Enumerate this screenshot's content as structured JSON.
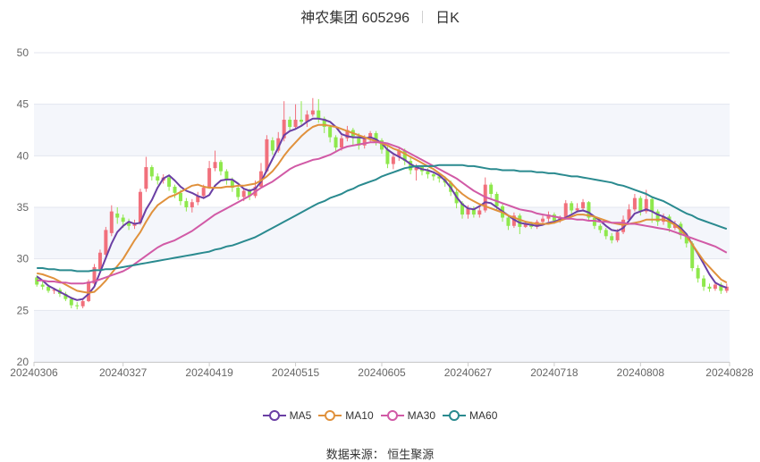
{
  "header": {
    "title": "神农集团 605296",
    "period": "日K"
  },
  "source_text": "数据来源： 恒生聚源",
  "colors": {
    "up": "#f1707c",
    "down": "#8ee84c",
    "grid": "#e3e6ef",
    "plot_band": "#f4f6fb",
    "axis_text": "#666666"
  },
  "chart_data": {
    "type": "candlestick",
    "title": "神农集团 605296",
    "ylim": [
      20,
      50
    ],
    "yticks": [
      20,
      25,
      30,
      35,
      40,
      45,
      50
    ],
    "xtick_labels": [
      "20240306",
      "20240327",
      "20240419",
      "20240515",
      "20240605",
      "20240627",
      "20240718",
      "20240808",
      "20240828"
    ],
    "xtick_index": [
      0,
      15,
      30,
      45,
      60,
      75,
      90,
      105,
      120
    ],
    "grid": true,
    "legend_position": "bottom",
    "candles": [
      [
        28.2,
        27.5,
        28.4,
        27.3
      ],
      [
        27.5,
        27.3,
        27.8,
        27.0
      ],
      [
        27.3,
        26.9,
        27.5,
        26.7
      ],
      [
        26.9,
        27.0,
        27.2,
        26.6
      ],
      [
        27.0,
        26.6,
        27.2,
        26.3
      ],
      [
        26.6,
        26.1,
        26.8,
        25.9
      ],
      [
        26.1,
        25.5,
        26.3,
        25.2
      ],
      [
        25.5,
        25.4,
        25.8,
        25.1
      ],
      [
        25.4,
        25.9,
        26.2,
        25.2
      ],
      [
        25.9,
        27.8,
        28.0,
        25.8
      ],
      [
        27.6,
        29.2,
        29.5,
        27.4
      ],
      [
        29.0,
        30.6,
        30.9,
        28.8
      ],
      [
        30.4,
        32.8,
        33.1,
        30.2
      ],
      [
        32.5,
        34.6,
        35.2,
        32.2
      ],
      [
        34.4,
        34.0,
        35.0,
        33.4
      ],
      [
        34.0,
        33.6,
        34.3,
        33.0
      ],
      [
        33.6,
        33.2,
        33.9,
        32.8
      ],
      [
        33.2,
        33.5,
        33.8,
        32.9
      ],
      [
        33.5,
        36.5,
        36.8,
        33.3
      ],
      [
        36.8,
        38.9,
        39.9,
        36.5
      ],
      [
        38.9,
        38.0,
        39.1,
        37.6
      ],
      [
        38.0,
        37.6,
        38.3,
        37.2
      ],
      [
        37.6,
        37.9,
        38.2,
        37.3
      ],
      [
        37.9,
        37.0,
        38.1,
        36.6
      ],
      [
        37.0,
        36.4,
        37.2,
        35.9
      ],
      [
        36.4,
        35.6,
        36.7,
        35.2
      ],
      [
        35.6,
        35.0,
        35.9,
        34.6
      ],
      [
        35.0,
        35.5,
        35.8,
        34.5
      ],
      [
        35.5,
        36.1,
        36.5,
        35.2
      ],
      [
        36.1,
        36.9,
        37.2,
        35.8
      ],
      [
        36.9,
        38.8,
        39.5,
        36.8
      ],
      [
        38.8,
        39.4,
        40.5,
        38.5
      ],
      [
        39.4,
        38.5,
        39.6,
        38.1
      ],
      [
        38.5,
        37.6,
        38.7,
        37.2
      ],
      [
        37.6,
        36.9,
        37.9,
        36.5
      ],
      [
        36.9,
        36.0,
        37.1,
        35.7
      ],
      [
        36.0,
        36.6,
        36.9,
        35.6
      ],
      [
        36.6,
        36.1,
        36.8,
        35.7
      ],
      [
        36.1,
        37.0,
        37.6,
        35.9
      ],
      [
        37.0,
        38.5,
        39.3,
        36.9
      ],
      [
        38.5,
        41.6,
        42.0,
        38.4
      ],
      [
        41.5,
        40.5,
        41.8,
        40.1
      ],
      [
        40.5,
        41.7,
        42.3,
        40.3
      ],
      [
        41.7,
        43.5,
        45.3,
        41.4
      ],
      [
        43.5,
        42.8,
        43.8,
        42.4
      ],
      [
        42.8,
        43.5,
        45.0,
        42.6
      ],
      [
        43.5,
        43.3,
        45.3,
        43.0
      ],
      [
        43.3,
        44.0,
        44.4,
        42.8
      ],
      [
        44.0,
        44.4,
        45.6,
        43.8
      ],
      [
        44.4,
        43.6,
        45.5,
        43.2
      ],
      [
        43.6,
        42.8,
        43.8,
        42.2
      ],
      [
        42.8,
        41.8,
        43.0,
        41.3
      ],
      [
        41.8,
        40.8,
        42.0,
        40.4
      ],
      [
        40.8,
        41.7,
        42.0,
        40.5
      ],
      [
        41.7,
        42.5,
        42.9,
        41.4
      ],
      [
        42.5,
        41.9,
        42.7,
        41.0
      ],
      [
        41.9,
        41.0,
        42.2,
        40.6
      ],
      [
        41.0,
        41.7,
        42.0,
        40.7
      ],
      [
        41.7,
        42.2,
        42.4,
        41.3
      ],
      [
        42.2,
        41.5,
        42.4,
        41.0
      ],
      [
        41.5,
        40.6,
        41.7,
        40.2
      ],
      [
        40.6,
        39.2,
        40.9,
        38.8
      ],
      [
        39.2,
        39.9,
        40.2,
        38.7
      ],
      [
        39.9,
        40.5,
        40.8,
        39.5
      ],
      [
        40.5,
        39.5,
        40.7,
        39.1
      ],
      [
        39.5,
        38.6,
        39.8,
        38.2
      ],
      [
        38.6,
        38.9,
        39.2,
        37.6
      ],
      [
        38.9,
        38.5,
        39.1,
        38.1
      ],
      [
        38.5,
        38.2,
        38.8,
        37.8
      ],
      [
        38.2,
        38.0,
        38.5,
        37.6
      ],
      [
        38.0,
        37.8,
        38.3,
        37.4
      ],
      [
        37.8,
        37.4,
        38.0,
        37.0
      ],
      [
        37.4,
        36.5,
        37.6,
        36.1
      ],
      [
        36.5,
        35.4,
        36.8,
        34.9
      ],
      [
        35.4,
        34.3,
        35.6,
        33.9
      ],
      [
        34.3,
        34.9,
        35.2,
        33.9
      ],
      [
        34.9,
        34.3,
        35.1,
        34.0
      ],
      [
        34.3,
        34.7,
        35.0,
        34.0
      ],
      [
        34.7,
        37.2,
        37.9,
        34.5
      ],
      [
        37.2,
        36.3,
        37.4,
        35.9
      ],
      [
        36.3,
        35.1,
        36.5,
        34.7
      ],
      [
        35.1,
        34.0,
        35.3,
        33.6
      ],
      [
        34.0,
        33.2,
        34.2,
        32.8
      ],
      [
        33.2,
        34.2,
        34.5,
        33.0
      ],
      [
        34.2,
        33.1,
        34.4,
        32.4
      ],
      [
        33.1,
        33.4,
        33.7,
        33.0
      ],
      [
        33.4,
        33.1,
        33.6,
        32.9
      ],
      [
        33.1,
        33.6,
        33.8,
        32.9
      ],
      [
        33.6,
        33.9,
        34.2,
        33.3
      ],
      [
        33.9,
        34.3,
        34.6,
        33.6
      ],
      [
        34.3,
        33.7,
        34.5,
        33.4
      ],
      [
        33.7,
        34.0,
        34.2,
        33.5
      ],
      [
        34.0,
        35.4,
        35.7,
        33.9
      ],
      [
        35.4,
        34.7,
        35.6,
        34.4
      ],
      [
        34.7,
        34.9,
        35.4,
        34.5
      ],
      [
        34.9,
        35.5,
        35.8,
        34.6
      ],
      [
        35.5,
        34.0,
        35.6,
        33.7
      ],
      [
        34.0,
        33.2,
        34.2,
        32.9
      ],
      [
        33.2,
        32.8,
        33.4,
        32.5
      ],
      [
        32.8,
        32.2,
        33.0,
        31.9
      ],
      [
        32.2,
        31.8,
        32.5,
        31.5
      ],
      [
        31.8,
        32.6,
        32.9,
        31.6
      ],
      [
        32.6,
        33.8,
        34.2,
        32.4
      ],
      [
        33.8,
        34.8,
        35.3,
        33.6
      ],
      [
        34.8,
        35.9,
        36.3,
        34.6
      ],
      [
        35.9,
        34.6,
        36.1,
        34.2
      ],
      [
        34.6,
        35.8,
        36.7,
        34.4
      ],
      [
        35.8,
        34.6,
        36.0,
        33.5
      ],
      [
        34.6,
        33.6,
        34.8,
        33.2
      ],
      [
        33.6,
        34.1,
        34.4,
        33.3
      ],
      [
        34.1,
        33.0,
        34.3,
        32.6
      ],
      [
        33.0,
        33.4,
        33.7,
        32.8
      ],
      [
        33.4,
        32.3,
        33.6,
        31.9
      ],
      [
        32.3,
        31.5,
        32.5,
        31.1
      ],
      [
        31.5,
        29.1,
        31.7,
        28.8
      ],
      [
        29.1,
        28.1,
        29.4,
        27.7
      ],
      [
        28.1,
        27.3,
        28.4,
        26.9
      ],
      [
        27.3,
        27.1,
        27.6,
        26.8
      ],
      [
        27.1,
        27.5,
        27.8,
        26.9
      ],
      [
        27.5,
        26.9,
        27.7,
        26.6
      ],
      [
        26.9,
        27.3,
        27.6,
        26.7
      ]
    ],
    "series": [
      {
        "name": "MA5",
        "color": "#6a3fa4",
        "values": [
          28.3,
          27.9,
          27.4,
          27.1,
          26.8,
          26.5,
          26.2,
          26.0,
          26.1,
          26.6,
          27.3,
          28.7,
          30.1,
          31.5,
          32.6,
          33.2,
          33.6,
          33.4,
          33.5,
          34.8,
          35.7,
          36.9,
          37.8,
          38.1,
          37.6,
          37.0,
          36.6,
          36.4,
          36.1,
          35.9,
          36.2,
          37.1,
          37.6,
          37.7,
          37.7,
          37.3,
          36.8,
          36.6,
          36.8,
          37.5,
          38.6,
          39.7,
          40.8,
          42.0,
          42.4,
          42.6,
          42.9,
          43.3,
          43.6,
          43.6,
          43.5,
          43.3,
          42.8,
          42.1,
          41.9,
          41.8,
          41.8,
          41.7,
          41.8,
          41.6,
          41.2,
          40.6,
          40.2,
          39.9,
          39.6,
          39.2,
          38.9,
          38.7,
          38.6,
          38.4,
          38.1,
          37.6,
          36.9,
          36.0,
          35.3,
          34.9,
          34.8,
          35.1,
          35.5,
          35.4,
          35.0,
          34.6,
          34.2,
          33.8,
          33.5,
          33.4,
          33.3,
          33.2,
          33.3,
          33.5,
          33.6,
          33.8,
          34.0,
          34.3,
          34.6,
          34.7,
          34.5,
          34.1,
          33.7,
          33.2,
          32.8,
          32.7,
          33.0,
          33.7,
          34.4,
          34.6,
          34.8,
          34.6,
          34.3,
          34.1,
          33.8,
          33.4,
          33.0,
          32.4,
          31.4,
          30.5,
          29.5,
          28.5,
          27.7,
          27.4,
          27.2
        ]
      },
      {
        "name": "MA10",
        "color": "#e0913c",
        "values": [
          28.6,
          28.5,
          28.3,
          28.1,
          27.8,
          27.5,
          27.2,
          26.9,
          26.8,
          26.7,
          26.8,
          27.3,
          27.9,
          28.6,
          29.3,
          30.0,
          30.9,
          31.8,
          32.6,
          33.6,
          34.5,
          35.2,
          35.6,
          36.0,
          36.2,
          36.5,
          36.8,
          37.1,
          37.2,
          37.0,
          36.9,
          36.9,
          36.9,
          37.0,
          37.0,
          37.1,
          37.1,
          37.2,
          37.3,
          37.6,
          38.0,
          38.5,
          39.2,
          40.0,
          40.7,
          41.3,
          41.9,
          42.4,
          42.8,
          43.0,
          43.0,
          42.9,
          42.8,
          42.6,
          42.4,
          42.2,
          42.0,
          41.8,
          41.6,
          41.4,
          41.2,
          41.0,
          40.7,
          40.5,
          40.2,
          39.9,
          39.6,
          39.3,
          39.0,
          38.7,
          38.3,
          37.9,
          37.4,
          36.8,
          36.3,
          35.9,
          35.6,
          35.3,
          35.1,
          34.9,
          34.7,
          34.5,
          34.2,
          34.0,
          33.8,
          33.6,
          33.5,
          33.4,
          33.4,
          33.4,
          33.5,
          33.7,
          33.9,
          34.1,
          34.3,
          34.3,
          34.2,
          34.1,
          33.9,
          33.7,
          33.5,
          33.4,
          33.3,
          33.4,
          33.5,
          33.6,
          33.8,
          33.8,
          33.8,
          33.8,
          33.6,
          33.3,
          32.8,
          32.2,
          31.4,
          30.6,
          29.8,
          29.2,
          28.6,
          28.0,
          27.7
        ]
      },
      {
        "name": "MA30",
        "color": "#d15aa6",
        "values": [
          27.9,
          27.9,
          27.8,
          27.8,
          27.7,
          27.7,
          27.6,
          27.6,
          27.6,
          27.7,
          27.8,
          28.0,
          28.2,
          28.4,
          28.6,
          28.8,
          29.1,
          29.5,
          29.9,
          30.3,
          30.7,
          31.1,
          31.4,
          31.6,
          31.8,
          32.1,
          32.4,
          32.7,
          33.1,
          33.5,
          33.9,
          34.3,
          34.6,
          34.9,
          35.2,
          35.5,
          35.8,
          36.1,
          36.5,
          36.9,
          37.2,
          37.5,
          37.9,
          38.3,
          38.7,
          39.0,
          39.2,
          39.4,
          39.6,
          39.7,
          39.9,
          40.1,
          40.4,
          40.7,
          40.9,
          41.0,
          41.1,
          41.2,
          41.3,
          41.3,
          41.3,
          41.2,
          41.0,
          40.8,
          40.5,
          40.2,
          39.9,
          39.6,
          39.3,
          39.0,
          38.7,
          38.4,
          38.1,
          37.8,
          37.4,
          37.0,
          36.6,
          36.3,
          36.0,
          35.8,
          35.6,
          35.4,
          35.2,
          35.0,
          34.8,
          34.7,
          34.6,
          34.4,
          34.3,
          34.2,
          34.1,
          34.0,
          33.9,
          33.9,
          33.8,
          33.8,
          33.7,
          33.7,
          33.6,
          33.6,
          33.5,
          33.5,
          33.5,
          33.4,
          33.4,
          33.3,
          33.2,
          33.1,
          33.0,
          32.9,
          32.8,
          32.6,
          32.4,
          32.2,
          32.0,
          31.8,
          31.6,
          31.4,
          31.2,
          30.9,
          30.6
        ]
      },
      {
        "name": "MA60",
        "color": "#2a8a8f",
        "values": [
          29.1,
          29.1,
          29.0,
          29.0,
          28.9,
          28.9,
          28.9,
          28.8,
          28.8,
          28.8,
          28.9,
          28.9,
          29.0,
          29.0,
          29.1,
          29.2,
          29.3,
          29.4,
          29.5,
          29.6,
          29.7,
          29.8,
          29.9,
          30.0,
          30.1,
          30.2,
          30.3,
          30.4,
          30.5,
          30.6,
          30.7,
          30.9,
          31.0,
          31.2,
          31.3,
          31.5,
          31.7,
          31.9,
          32.1,
          32.4,
          32.7,
          33.0,
          33.3,
          33.6,
          33.9,
          34.2,
          34.5,
          34.8,
          35.1,
          35.4,
          35.6,
          35.9,
          36.1,
          36.3,
          36.6,
          36.8,
          37.1,
          37.3,
          37.5,
          37.7,
          38.0,
          38.2,
          38.4,
          38.6,
          38.8,
          38.9,
          39.0,
          39.0,
          39.0,
          39.0,
          39.1,
          39.1,
          39.1,
          39.1,
          39.1,
          39.0,
          39.0,
          38.9,
          38.8,
          38.7,
          38.7,
          38.6,
          38.6,
          38.6,
          38.5,
          38.5,
          38.5,
          38.4,
          38.4,
          38.3,
          38.3,
          38.2,
          38.1,
          38.0,
          38.0,
          37.9,
          37.8,
          37.7,
          37.6,
          37.5,
          37.4,
          37.2,
          37.1,
          36.9,
          36.7,
          36.5,
          36.3,
          36.0,
          35.8,
          35.6,
          35.3,
          35.0,
          34.7,
          34.4,
          34.2,
          33.9,
          33.7,
          33.5,
          33.3,
          33.1,
          32.9
        ]
      }
    ]
  }
}
